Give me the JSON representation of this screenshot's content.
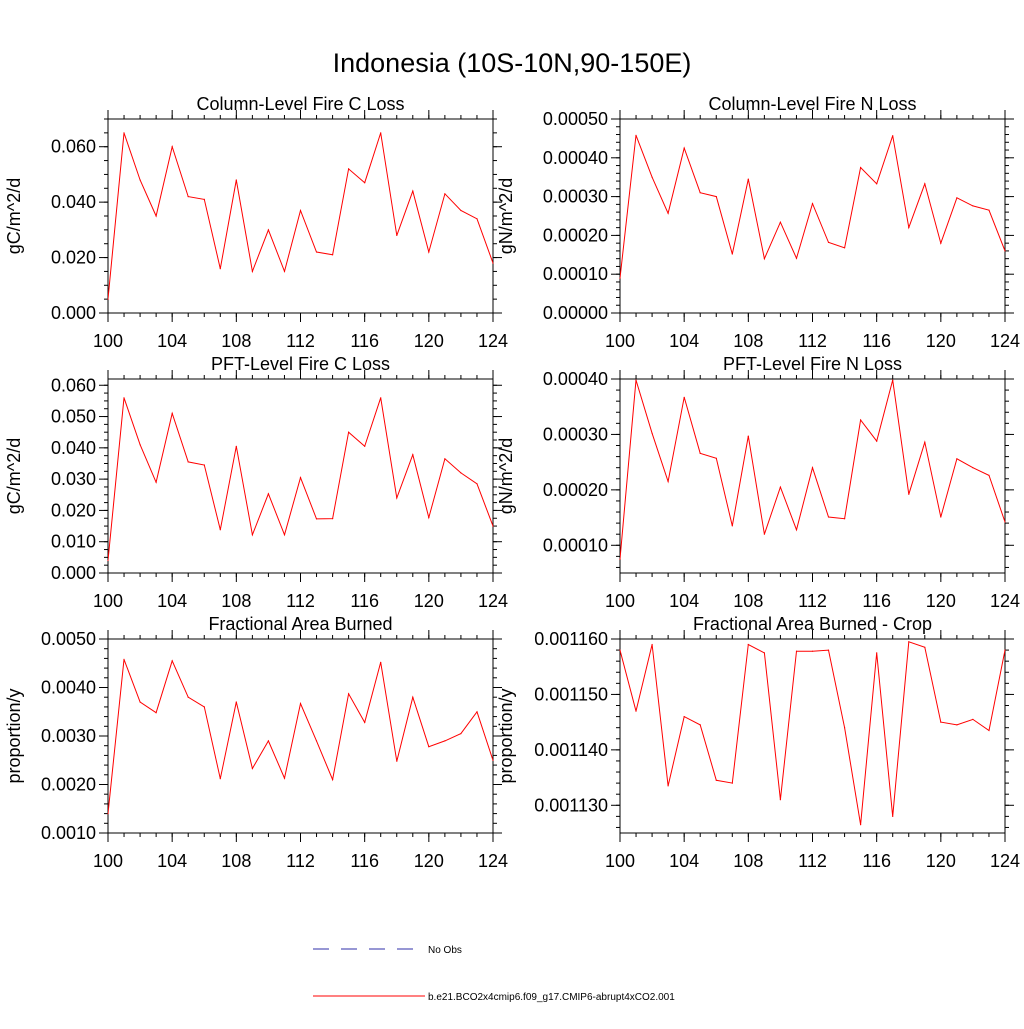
{
  "figure_title": "Indonesia (10S-10N,90-150E)",
  "colors": {
    "series": "#ff0000",
    "obs": "#2f2fa8",
    "axis": "#000000"
  },
  "legend": {
    "obs_label": "No Obs",
    "model_label": "b.e21.BCO2x4cmip6.f09_g17.CMIP6-abrupt4xCO2.001"
  },
  "chart_data": [
    {
      "type": "line",
      "title": "Column-Level Fire C Loss",
      "ylabel": "gC/m^2/d",
      "xlabel": "",
      "xlim": [
        100,
        124
      ],
      "ylim": [
        0,
        0.07
      ],
      "xticks": [
        100,
        104,
        108,
        112,
        116,
        120,
        124
      ],
      "xtick_labels": [
        "100",
        "104",
        "108",
        "112",
        "116",
        "120",
        "124"
      ],
      "yticks": [
        0,
        0.02,
        0.04,
        0.06
      ],
      "ytick_labels": [
        "0.000",
        "0.020",
        "0.040",
        "0.060"
      ],
      "yminor": 0.005,
      "series": [
        {
          "name": "b.e21.BCO2x4cmip6.f09_g17.CMIP6-abrupt4xCO2.001",
          "x": [
            100,
            101,
            102,
            103,
            104,
            105,
            106,
            107,
            108,
            109,
            110,
            111,
            112,
            113,
            114,
            115,
            116,
            117,
            118,
            119,
            120,
            121,
            122,
            123,
            124
          ],
          "values": [
            0.005,
            0.065,
            0.048,
            0.035,
            0.06,
            0.042,
            0.041,
            0.016,
            0.048,
            0.015,
            0.03,
            0.015,
            0.037,
            0.022,
            0.021,
            0.052,
            0.047,
            0.065,
            0.028,
            0.044,
            0.022,
            0.043,
            0.037,
            0.034,
            0.018
          ]
        }
      ]
    },
    {
      "type": "line",
      "title": "Column-Level Fire N Loss",
      "ylabel": "gN/m^2/d",
      "xlabel": "",
      "xlim": [
        100,
        124
      ],
      "ylim": [
        0,
        0.0005
      ],
      "xticks": [
        100,
        104,
        108,
        112,
        116,
        120,
        124
      ],
      "xtick_labels": [
        "100",
        "104",
        "108",
        "112",
        "116",
        "120",
        "124"
      ],
      "yticks": [
        0,
        0.0001,
        0.0002,
        0.0003,
        0.0004,
        0.0005
      ],
      "ytick_labels": [
        "0.00000",
        "0.00010",
        "0.00020",
        "0.00030",
        "0.00040",
        "0.00050"
      ],
      "yminor": 2e-05,
      "series": [
        {
          "name": "b.e21.BCO2x4cmip6.f09_g17.CMIP6-abrupt4xCO2.001",
          "x": [
            100,
            101,
            102,
            103,
            104,
            105,
            106,
            107,
            108,
            109,
            110,
            111,
            112,
            113,
            114,
            115,
            116,
            117,
            118,
            119,
            120,
            121,
            122,
            123,
            124
          ],
          "values": [
            9e-05,
            0.000458,
            0.00035,
            0.000257,
            0.000425,
            0.00031,
            0.0003,
            0.000152,
            0.000345,
            0.00014,
            0.000234,
            0.000141,
            0.000282,
            0.000182,
            0.000168,
            0.000375,
            0.000333,
            0.000457,
            0.00022,
            0.000333,
            0.00018,
            0.000297,
            0.000276,
            0.000265,
            0.00016
          ]
        }
      ]
    },
    {
      "type": "line",
      "title": "PFT-Level Fire C Loss",
      "ylabel": "gC/m^2/d",
      "xlabel": "",
      "xlim": [
        100,
        124
      ],
      "ylim": [
        0,
        0.062
      ],
      "xticks": [
        100,
        104,
        108,
        112,
        116,
        120,
        124
      ],
      "xtick_labels": [
        "100",
        "104",
        "108",
        "112",
        "116",
        "120",
        "124"
      ],
      "yticks": [
        0,
        0.01,
        0.02,
        0.03,
        0.04,
        0.05,
        0.06
      ],
      "ytick_labels": [
        "0.000",
        "0.010",
        "0.020",
        "0.030",
        "0.040",
        "0.050",
        "0.060"
      ],
      "yminor": 0.0025,
      "series": [
        {
          "name": "b.e21.BCO2x4cmip6.f09_g17.CMIP6-abrupt4xCO2.001",
          "x": [
            100,
            101,
            102,
            103,
            104,
            105,
            106,
            107,
            108,
            109,
            110,
            111,
            112,
            113,
            114,
            115,
            116,
            117,
            118,
            119,
            120,
            121,
            122,
            123,
            124
          ],
          "values": [
            0.004,
            0.056,
            0.041,
            0.029,
            0.051,
            0.0355,
            0.0345,
            0.0138,
            0.0405,
            0.0122,
            0.0253,
            0.0122,
            0.0305,
            0.0173,
            0.0174,
            0.045,
            0.0405,
            0.056,
            0.024,
            0.0378,
            0.0177,
            0.0365,
            0.032,
            0.0285,
            0.015
          ]
        }
      ]
    },
    {
      "type": "line",
      "title": "PFT-Level Fire N Loss",
      "ylabel": "gN/m^2/d",
      "xlabel": "",
      "xlim": [
        100,
        124
      ],
      "ylim": [
        5e-05,
        0.0004
      ],
      "xticks": [
        100,
        104,
        108,
        112,
        116,
        120,
        124
      ],
      "xtick_labels": [
        "100",
        "104",
        "108",
        "112",
        "116",
        "120",
        "124"
      ],
      "yticks": [
        0.0001,
        0.0002,
        0.0003,
        0.0004
      ],
      "ytick_labels": [
        "0.00010",
        "0.00020",
        "0.00030",
        "0.00040"
      ],
      "yminor": 2e-05,
      "series": [
        {
          "name": "b.e21.BCO2x4cmip6.f09_g17.CMIP6-abrupt4xCO2.001",
          "x": [
            100,
            101,
            102,
            103,
            104,
            105,
            106,
            107,
            108,
            109,
            110,
            111,
            112,
            113,
            114,
            115,
            116,
            117,
            118,
            119,
            120,
            121,
            122,
            123,
            124
          ],
          "values": [
            7.5e-05,
            0.000398,
            0.000302,
            0.000215,
            0.000367,
            0.000266,
            0.000257,
            0.000135,
            0.000297,
            0.00012,
            0.000205,
            0.000128,
            0.00024,
            0.000151,
            0.000148,
            0.000326,
            0.000288,
            0.000398,
            0.000192,
            0.000286,
            0.000151,
            0.000256,
            0.00024,
            0.000226,
            0.000142
          ]
        }
      ]
    },
    {
      "type": "line",
      "title": "Fractional Area Burned",
      "ylabel": "proportion/y",
      "xlabel": "",
      "xlim": [
        100,
        124
      ],
      "ylim": [
        0.001,
        0.005
      ],
      "xticks": [
        100,
        104,
        108,
        112,
        116,
        120,
        124
      ],
      "xtick_labels": [
        "100",
        "104",
        "108",
        "112",
        "116",
        "120",
        "124"
      ],
      "yticks": [
        0.001,
        0.002,
        0.003,
        0.004,
        0.005
      ],
      "ytick_labels": [
        "0.0010",
        "0.0020",
        "0.0030",
        "0.0040",
        "0.0050"
      ],
      "yminor": 0.0002,
      "series": [
        {
          "name": "b.e21.BCO2x4cmip6.f09_g17.CMIP6-abrupt4xCO2.001",
          "x": [
            100,
            101,
            102,
            103,
            104,
            105,
            106,
            107,
            108,
            109,
            110,
            111,
            112,
            113,
            114,
            115,
            116,
            117,
            118,
            119,
            120,
            121,
            122,
            123,
            124
          ],
          "values": [
            0.0014,
            0.00458,
            0.0037,
            0.00348,
            0.00455,
            0.0038,
            0.0036,
            0.00212,
            0.0037,
            0.00233,
            0.0029,
            0.00213,
            0.00367,
            0.0029,
            0.0021,
            0.00387,
            0.00328,
            0.00452,
            0.00248,
            0.0038,
            0.00278,
            0.0029,
            0.00305,
            0.0035,
            0.0025
          ]
        }
      ]
    },
    {
      "type": "line",
      "title": "Fractional Area Burned - Crop",
      "ylabel": "proportion/y",
      "xlabel": "",
      "xlim": [
        100,
        124
      ],
      "ylim": [
        0.001125,
        0.00116
      ],
      "xticks": [
        100,
        104,
        108,
        112,
        116,
        120,
        124
      ],
      "xtick_labels": [
        "100",
        "104",
        "108",
        "112",
        "116",
        "120",
        "124"
      ],
      "yticks": [
        0.00113,
        0.00114,
        0.00115,
        0.00116
      ],
      "ytick_labels": [
        "0.001130",
        "0.001140",
        "0.001150",
        "0.001160"
      ],
      "yminor": 2e-06,
      "series": [
        {
          "name": "b.e21.BCO2x4cmip6.f09_g17.CMIP6-abrupt4xCO2.001",
          "x": [
            100,
            101,
            102,
            103,
            104,
            105,
            106,
            107,
            108,
            109,
            110,
            111,
            112,
            113,
            114,
            115,
            116,
            117,
            118,
            119,
            120,
            121,
            122,
            123,
            124
          ],
          "values": [
            0.001158,
            0.001147,
            0.001159,
            0.0011335,
            0.001146,
            0.0011445,
            0.0011345,
            0.001134,
            0.001159,
            0.0011575,
            0.001131,
            0.0011578,
            0.0011578,
            0.001158,
            0.001144,
            0.0011265,
            0.0011575,
            0.001128,
            0.0011595,
            0.0011585,
            0.001145,
            0.0011445,
            0.0011455,
            0.0011435,
            0.001158
          ]
        }
      ]
    }
  ]
}
